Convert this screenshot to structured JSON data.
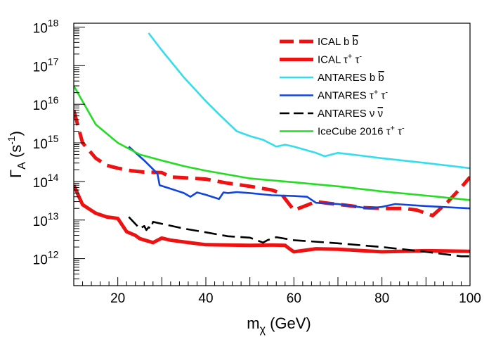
{
  "chart_data": {
    "type": "line",
    "title": "",
    "xlabel": "m",
    "xlabel_sub": "χ",
    "xlabel_unit": " (GeV)",
    "ylabel": "Γ",
    "ylabel_sub": "A",
    "ylabel_unit_pre": " (s",
    "ylabel_unit_sup": "-1",
    "ylabel_unit_post": ")",
    "xlim": [
      10,
      100
    ],
    "ylim_log10": [
      11.3,
      18.1
    ],
    "yscale": "log",
    "x_ticks": [
      20,
      40,
      60,
      80,
      100
    ],
    "y_ticks": [
      {
        "exp": 12,
        "base": "10",
        "power": "12"
      },
      {
        "exp": 13,
        "base": "10",
        "power": "13"
      },
      {
        "exp": 14,
        "base": "10",
        "power": "14"
      },
      {
        "exp": 15,
        "base": "10",
        "power": "15"
      },
      {
        "exp": 16,
        "base": "10",
        "power": "16"
      },
      {
        "exp": 17,
        "base": "10",
        "power": "17"
      },
      {
        "exp": 18,
        "base": "10",
        "power": "18"
      }
    ],
    "legend_position": "top-right",
    "series": [
      {
        "name": "ICAL b b̄",
        "legend_label": "ICAL b",
        "legend_bar": "b",
        "legend_sup": "",
        "legend_tail": "",
        "color": "#ee1111",
        "style": "dashed-thick",
        "points": [
          [
            10,
            7000000000000000.0
          ],
          [
            12,
            1000000000000000.0
          ],
          [
            15,
            400000000000000.0
          ],
          [
            17.5,
            260000000000000.0
          ],
          [
            20,
            220000000000000.0
          ],
          [
            23,
            190000000000000.0
          ],
          [
            26,
            175000000000000.0
          ],
          [
            30,
            170000000000000.0
          ],
          [
            32,
            130000000000000.0
          ],
          [
            35,
            125000000000000.0
          ],
          [
            40,
            115000000000000.0
          ],
          [
            45,
            90000000000000.0
          ],
          [
            50,
            75000000000000.0
          ],
          [
            55,
            60000000000000.0
          ],
          [
            57,
            50000000000000.0
          ],
          [
            60,
            18000000000000.0
          ],
          [
            62,
            22000000000000.0
          ],
          [
            65,
            30000000000000.0
          ],
          [
            68,
            27000000000000.0
          ],
          [
            72,
            24000000000000.0
          ],
          [
            76,
            21000000000000.0
          ],
          [
            80,
            20000000000000.0
          ],
          [
            85,
            20000000000000.0
          ],
          [
            88,
            18000000000000.0
          ],
          [
            91.5,
            13000000000000.0
          ],
          [
            95,
            30000000000000.0
          ],
          [
            98,
            70000000000000.0
          ],
          [
            100,
            130000000000000.0
          ]
        ]
      },
      {
        "name": "ICAL τ+ τ-",
        "legend_label": "ICAL τ",
        "legend_bar": "",
        "legend_sup": "+",
        "legend_tail": " τ",
        "legend_sup2": "-",
        "color": "#ee1111",
        "style": "solid-thick",
        "points": [
          [
            10,
            80000000000000.0
          ],
          [
            12,
            25000000000000.0
          ],
          [
            15,
            15000000000000.0
          ],
          [
            17.5,
            12000000000000.0
          ],
          [
            20,
            11000000000000.0
          ],
          [
            22,
            5000000000000.0
          ],
          [
            24,
            4000000000000.0
          ],
          [
            25,
            3300000000000.0
          ],
          [
            28,
            2600000000000.0
          ],
          [
            30,
            3400000000000.0
          ],
          [
            32,
            3000000000000.0
          ],
          [
            35,
            2700000000000.0
          ],
          [
            40,
            2300000000000.0
          ],
          [
            45,
            2250000000000.0
          ],
          [
            50,
            2200000000000.0
          ],
          [
            55,
            2250000000000.0
          ],
          [
            58,
            2200000000000.0
          ],
          [
            59,
            1800000000000.0
          ],
          [
            60,
            1500000000000.0
          ],
          [
            65,
            1800000000000.0
          ],
          [
            70,
            1750000000000.0
          ],
          [
            80,
            1500000000000.0
          ],
          [
            90,
            1600000000000.0
          ],
          [
            100,
            1550000000000.0
          ]
        ]
      },
      {
        "name": "ANTARES b b̄",
        "legend_label": "ANTARES b",
        "legend_bar": "b",
        "legend_sup": "",
        "legend_tail": "",
        "color": "#33ddee",
        "style": "solid",
        "points": [
          [
            27,
            7e+17
          ],
          [
            30,
            2.5e+17
          ],
          [
            35,
            5e+16
          ],
          [
            40,
            1.2e+16
          ],
          [
            43,
            5500000000000000.0
          ],
          [
            47,
            2000000000000000.0
          ],
          [
            50,
            1500000000000000.0
          ],
          [
            53,
            1200000000000000.0
          ],
          [
            56,
            800000000000000.0
          ],
          [
            58,
            900000000000000.0
          ],
          [
            60,
            800000000000000.0
          ],
          [
            65,
            550000000000000.0
          ],
          [
            67,
            450000000000000.0
          ],
          [
            70,
            550000000000000.0
          ],
          [
            75,
            470000000000000.0
          ],
          [
            80,
            400000000000000.0
          ],
          [
            90,
            300000000000000.0
          ],
          [
            100,
            220000000000000.0
          ]
        ]
      },
      {
        "name": "ANTARES τ+ τ-",
        "legend_label": "ANTARES τ",
        "legend_bar": "",
        "legend_sup": "+",
        "legend_tail": " τ",
        "legend_sup2": "-",
        "color": "#1144dd",
        "style": "solid",
        "points": [
          [
            22.5,
            800000000000000.0
          ],
          [
            26,
            350000000000000.0
          ],
          [
            29,
            160000000000000.0
          ],
          [
            29.5,
            80000000000000.0
          ],
          [
            32,
            65000000000000.0
          ],
          [
            35,
            50000000000000.0
          ],
          [
            36.5,
            40000000000000.0
          ],
          [
            38,
            52000000000000.0
          ],
          [
            40,
            45000000000000.0
          ],
          [
            43,
            35000000000000.0
          ],
          [
            44,
            52000000000000.0
          ],
          [
            45,
            50000000000000.0
          ],
          [
            47,
            53000000000000.0
          ],
          [
            50,
            50000000000000.0
          ],
          [
            55,
            44000000000000.0
          ],
          [
            60,
            42000000000000.0
          ],
          [
            63,
            40000000000000.0
          ],
          [
            65,
            28000000000000.0
          ],
          [
            70,
            26000000000000.0
          ],
          [
            77,
            20000000000000.0
          ],
          [
            80,
            22000000000000.0
          ],
          [
            83,
            26000000000000.0
          ],
          [
            90,
            23000000000000.0
          ],
          [
            100,
            20000000000000.0
          ]
        ]
      },
      {
        "name": "ANTARES ν ν̄",
        "legend_label": "ANTARES ν",
        "legend_bar": "ν",
        "legend_sup": "",
        "legend_tail": "",
        "color": "#000000",
        "style": "dashed",
        "points": [
          [
            22.5,
            12000000000000.0
          ],
          [
            25,
            6000000000000.0
          ],
          [
            26,
            7000000000000.0
          ],
          [
            26.5,
            5500000000000.0
          ],
          [
            27,
            6500000000000.0
          ],
          [
            27.5,
            6000000000000.0
          ],
          [
            28,
            9000000000000.0
          ],
          [
            30,
            8000000000000.0
          ],
          [
            35,
            6000000000000.0
          ],
          [
            40,
            4800000000000.0
          ],
          [
            45,
            3800000000000.0
          ],
          [
            50,
            3500000000000.0
          ],
          [
            53,
            2600000000000.0
          ],
          [
            54,
            3000000000000.0
          ],
          [
            56,
            3600000000000.0
          ],
          [
            60,
            3000000000000.0
          ],
          [
            70,
            2500000000000.0
          ],
          [
            80,
            2000000000000.0
          ],
          [
            90,
            1500000000000.0
          ],
          [
            98,
            1150000000000.0
          ],
          [
            100,
            1150000000000.0
          ]
        ]
      },
      {
        "name": "IceCube 2016 τ+ τ-",
        "legend_label": "IceCube 2016 τ",
        "legend_bar": "",
        "legend_sup": "+",
        "legend_tail": " τ",
        "legend_sup2": "-",
        "color": "#22dd22",
        "style": "solid",
        "points": [
          [
            10,
            3e+16
          ],
          [
            15,
            3000000000000000.0
          ],
          [
            20,
            1000000000000000.0
          ],
          [
            25,
            500000000000000.0
          ],
          [
            30,
            350000000000000.0
          ],
          [
            35,
            250000000000000.0
          ],
          [
            40,
            190000000000000.0
          ],
          [
            50,
            120000000000000.0
          ],
          [
            60,
            95000000000000.0
          ],
          [
            70,
            75000000000000.0
          ],
          [
            80,
            55000000000000.0
          ],
          [
            90,
            43000000000000.0
          ],
          [
            100,
            33000000000000.0
          ]
        ]
      }
    ]
  }
}
